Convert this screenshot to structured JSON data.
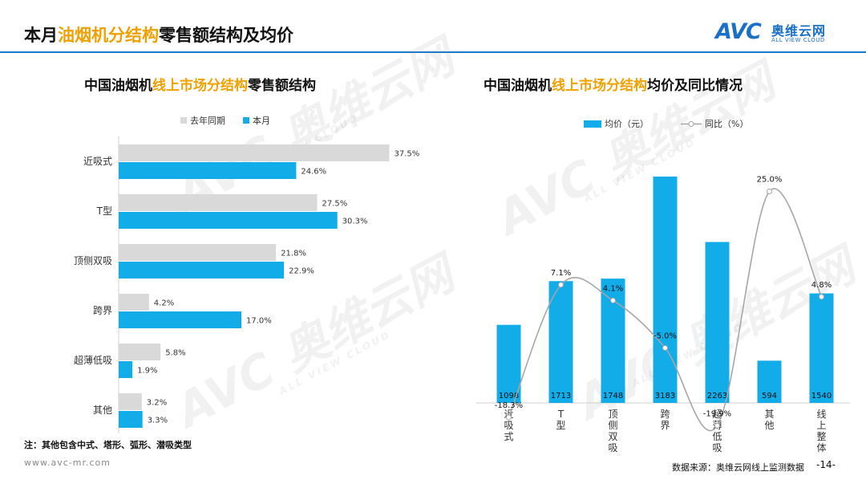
{
  "header": {
    "title_prefix": "本月",
    "title_highlight": "油烟机分结构",
    "title_suffix": "零售额结构及均价",
    "logo_mark": "AVC",
    "logo_cn": "奥维云网",
    "logo_en": "ALL VIEW CLOUD"
  },
  "watermark": {
    "big": "AVC 奥维云网",
    "small": "ALL VIEW CLOUD"
  },
  "colors": {
    "cyan": "#12ace8",
    "gray": "#d9d9d9",
    "accent": "#f0a000",
    "rule": "#1a78c8",
    "line": "#a6a6a6"
  },
  "left_chart": {
    "title_prefix": "中国油烟机",
    "title_highlight": "线上市场分结构",
    "title_suffix": "零售额结构"
  },
  "right_chart": {
    "title_prefix": "中国油烟机",
    "title_highlight": "线上市场分结构",
    "title_suffix": "均价及同比情况"
  },
  "chart_data": [
    {
      "type": "bar",
      "orientation": "horizontal",
      "categories": [
        "近吸式",
        "T型",
        "顶侧双吸",
        "跨界",
        "超薄低吸",
        "其他"
      ],
      "series": [
        {
          "name": "去年同期",
          "color": "#d9d9d9",
          "values": [
            37.5,
            27.5,
            21.8,
            4.2,
            5.8,
            3.2
          ]
        },
        {
          "name": "本月",
          "color": "#12ace8",
          "values": [
            24.6,
            30.3,
            22.9,
            17.0,
            1.9,
            3.3
          ]
        }
      ],
      "value_format": "%",
      "legend_position": "top",
      "grid": false
    },
    {
      "type": "bar+line",
      "categories": [
        "近吸式",
        "T型",
        "顶侧双吸",
        "跨界",
        "超薄低吸",
        "其他",
        "线上整体"
      ],
      "bars": {
        "name": "均价（元）",
        "color": "#12ace8",
        "values": [
          1098,
          1713,
          1748,
          3183,
          2263,
          594,
          1540
        ]
      },
      "line": {
        "name": "同比（%）",
        "color": "#a6a6a6",
        "values": [
          -18.3,
          7.1,
          4.1,
          -5.0,
          -19.9,
          25.0,
          4.8
        ]
      },
      "legend_position": "top",
      "grid": false
    }
  ],
  "footer": {
    "note": "注：其他包含中式、塔形、弧形、潜吸类型",
    "site": "www.avc-mr.com",
    "source": "数据来源：奥维云网线上监测数据",
    "page": "-14-"
  }
}
